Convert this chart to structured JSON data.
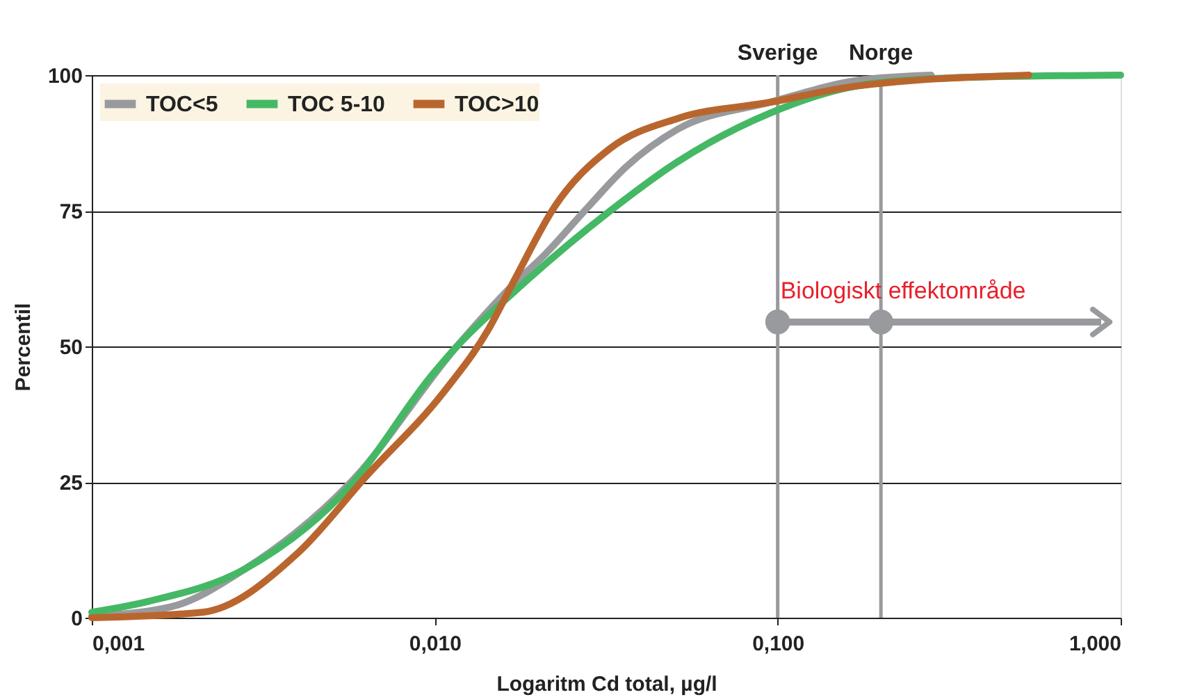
{
  "chart_data": {
    "type": "line",
    "xlabel": "Logaritm Cd total, µg/l",
    "ylabel": "Percentil",
    "log": "x",
    "xlim": [
      0.001,
      1
    ],
    "xticks": [
      {
        "value": 0.001,
        "label": "0,001"
      },
      {
        "value": 0.01,
        "label": "0,010"
      },
      {
        "value": 0.1,
        "label": "0,100"
      },
      {
        "value": 1,
        "label": "1,000"
      }
    ],
    "ylim": [
      0,
      100
    ],
    "yticks": [
      0,
      25,
      50,
      75,
      100
    ],
    "grid": "y",
    "legend": "top left",
    "line_style": "solid",
    "marker": "none",
    "series": [
      {
        "name": "TOC<5",
        "color": "#999a9e",
        "x": [
          0.001,
          0.0017,
          0.0028,
          0.0057,
          0.0116,
          0.017,
          0.021,
          0.028,
          0.036,
          0.051,
          0.095,
          0.17,
          0.28
        ],
        "values": [
          0.3,
          2,
          9,
          25,
          50,
          61.5,
          67,
          75.7,
          83,
          90,
          95,
          99,
          100
        ]
      },
      {
        "name": "TOC 5-10",
        "color": "#45b865",
        "x": [
          0.001,
          0.00146,
          0.0028,
          0.0057,
          0.0099,
          0.0116,
          0.017,
          0.0325,
          0.051,
          0.095,
          0.17,
          0.32,
          1
        ],
        "values": [
          1,
          3,
          9,
          24.5,
          45,
          50,
          60,
          75,
          84,
          93,
          98,
          99.5,
          100
        ]
      },
      {
        "name": "TOC>10",
        "color": "#b9662e",
        "x": [
          0.001,
          0.0021,
          0.004,
          0.0063,
          0.0106,
          0.0143,
          0.017,
          0.0225,
          0.0325,
          0.051,
          0.095,
          0.17,
          0.54
        ],
        "values": [
          0,
          1,
          12,
          26,
          41.5,
          53,
          62,
          76,
          86.5,
          92,
          95,
          98,
          100
        ]
      },
      {
        "type": "scatter",
        "color": "#999a9e",
        "marker": "circle",
        "x": [
          0.1,
          0.2
        ],
        "values": [
          54.5,
          54.5
        ]
      }
    ],
    "ref_lines": [
      {
        "axis": "x",
        "value": 0.1,
        "label": "Sverige",
        "color": "#999a9e"
      },
      {
        "axis": "x",
        "value": 0.2,
        "label": "Norge",
        "color": "#999a9e"
      }
    ],
    "annotations": [
      {
        "text": "Biologiskt effektområde",
        "x": 0.1,
        "y": 54.5
      }
    ]
  }
}
